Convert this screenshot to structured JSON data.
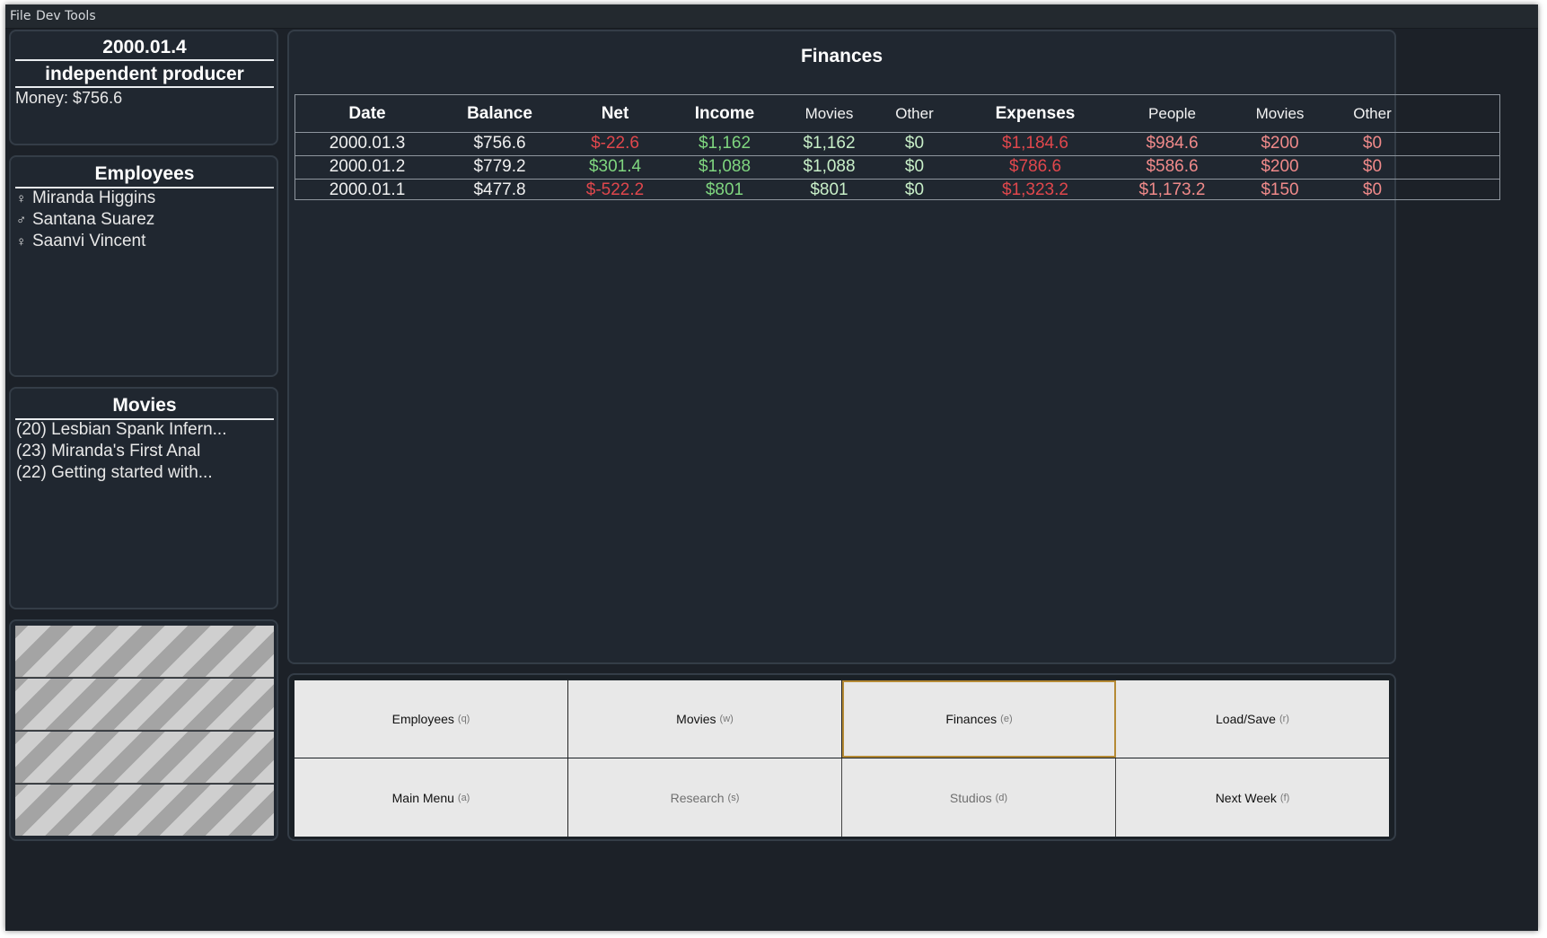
{
  "menubar": {
    "items": [
      "File",
      "Dev Tools"
    ]
  },
  "status": {
    "date": "2000.01.4",
    "rank": "independent producer",
    "money": "Money: $756.6"
  },
  "employees": {
    "title": "Employees",
    "items": [
      {
        "gender_icon": "♀",
        "name": "Miranda Higgins"
      },
      {
        "gender_icon": "♂",
        "name": "Santana Suarez"
      },
      {
        "gender_icon": "♀",
        "name": "Saanvi Vincent"
      }
    ]
  },
  "movies": {
    "title": "Movies",
    "items": [
      "(20) Lesbian Spank Infern...",
      "(23) Miranda's First Anal",
      "(22) Getting started with..."
    ]
  },
  "finances": {
    "title": "Finances",
    "columns": [
      "Date",
      "Balance",
      "Net",
      "Income",
      "Movies",
      "Other",
      "Expenses",
      "People",
      "Movies",
      "Other"
    ],
    "rows": [
      [
        "2000.01.3",
        "$756.6",
        "$-22.6",
        "$1,162",
        "$1,162",
        "$0",
        "$1,184.6",
        "$984.6",
        "$200",
        "$0"
      ],
      [
        "2000.01.2",
        "$779.2",
        "$301.4",
        "$1,088",
        "$1,088",
        "$0",
        "$786.6",
        "$586.6",
        "$200",
        "$0"
      ],
      [
        "2000.01.1",
        "$477.8",
        "$-522.2",
        "$801",
        "$801",
        "$0",
        "$1,323.2",
        "$1,173.2",
        "$150",
        "$0"
      ]
    ],
    "colors": {
      "negative": "#e0474c",
      "positive": "#7fd67f",
      "income_detail": "#c8efc8",
      "expense_detail": "#f08a8a"
    }
  },
  "nav": {
    "buttons": [
      {
        "label": "Employees",
        "key": "(q)",
        "state": "normal"
      },
      {
        "label": "Movies",
        "key": "(w)",
        "state": "normal"
      },
      {
        "label": "Finances",
        "key": "(e)",
        "state": "active"
      },
      {
        "label": "Load/Save",
        "key": "(r)",
        "state": "normal"
      },
      {
        "label": "Main Menu",
        "key": "(a)",
        "state": "normal"
      },
      {
        "label": "Research",
        "key": "(s)",
        "state": "disabled"
      },
      {
        "label": "Studios",
        "key": "(d)",
        "state": "disabled"
      },
      {
        "label": "Next Week",
        "key": "(f)",
        "state": "normal"
      }
    ],
    "active_border_color": "#b58a35"
  }
}
